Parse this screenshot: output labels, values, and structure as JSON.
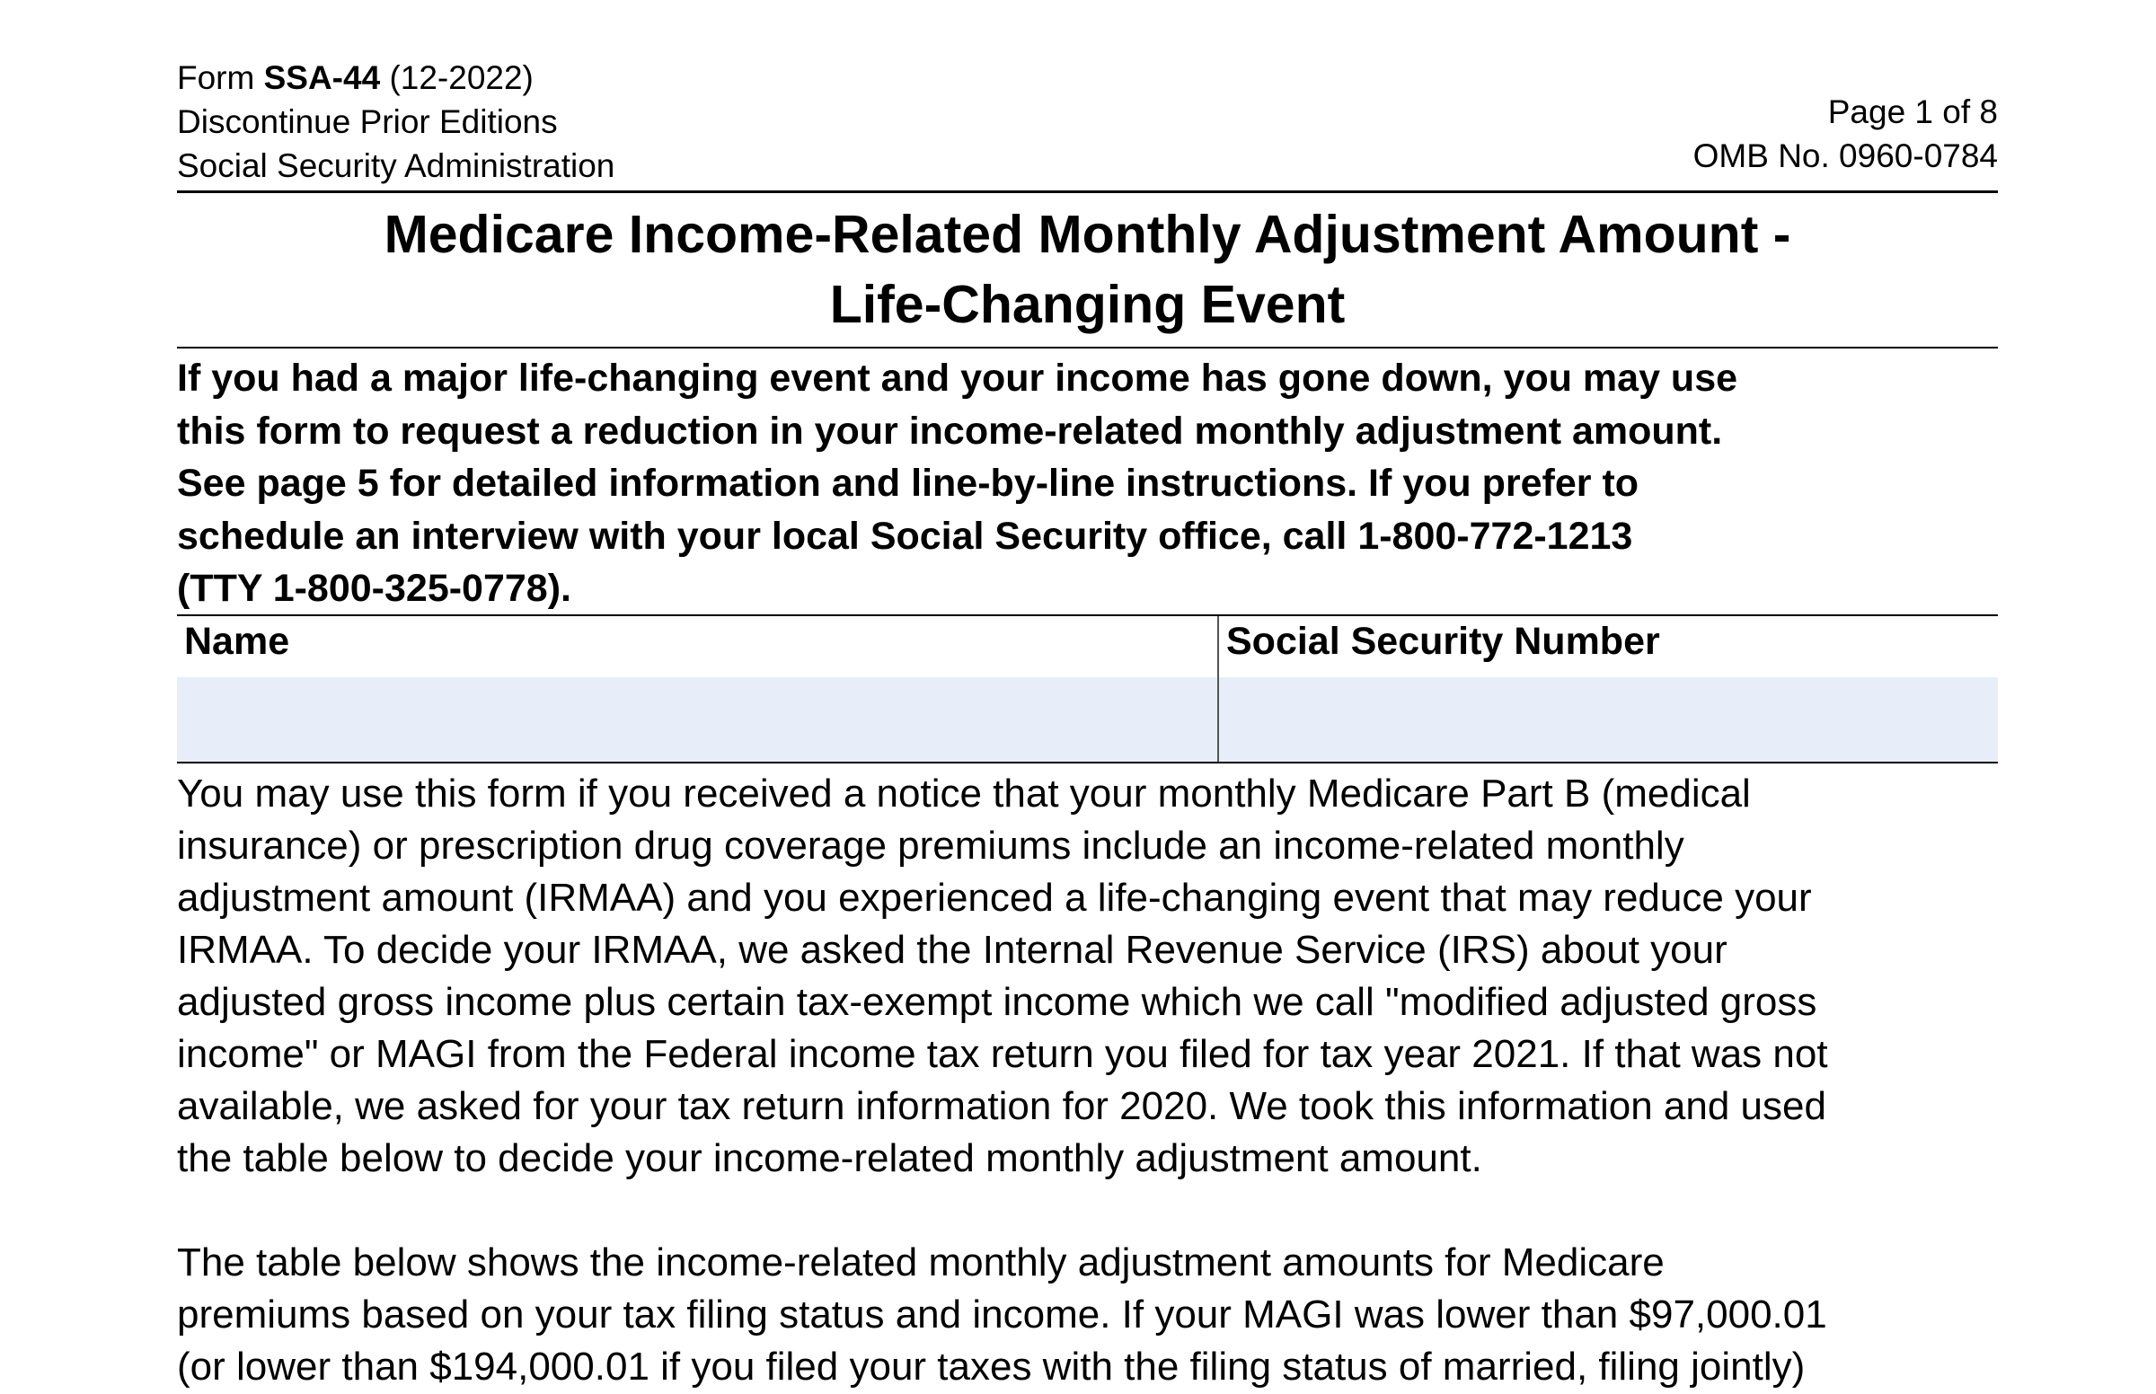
{
  "header": {
    "form_prefix": "Form ",
    "form_number": "SSA-44",
    "form_edition": " (12-2022)",
    "discontinue": "Discontinue Prior Editions",
    "agency": "Social Security Administration",
    "page": "Page 1 of 8",
    "omb": "OMB No. 0960-0784"
  },
  "title": {
    "line1": "Medicare Income-Related Monthly Adjustment Amount -",
    "line2": "Life-Changing Event"
  },
  "intro_lines": [
    "If you had a major life-changing event and your income has gone down, you may use",
    "this form to request a reduction in your income-related monthly adjustment amount.",
    "See page 5 for detailed information and line-by-line instructions. If you prefer to",
    "schedule an interview with your local Social Security office, call 1-800-772-1213",
    "(TTY 1-800-325-0778)."
  ],
  "fields": {
    "name_label": "Name",
    "name_value": "",
    "ssn_label": "Social Security Number",
    "ssn_value": ""
  },
  "paragraph1_lines": [
    "You may use this form if you received a notice that your monthly Medicare Part B (medical",
    "insurance) or prescription drug coverage premiums include an income-related monthly",
    "adjustment amount (IRMAA) and you experienced a life-changing event that may reduce your",
    "IRMAA. To decide your IRMAA, we asked the Internal Revenue Service (IRS) about your",
    "adjusted gross income plus certain tax-exempt income which we call \"modified adjusted gross",
    "income\" or MAGI from the Federal income tax return you filed for tax year 2021. If that was not",
    "available, we asked for your tax return information for 2020. We took this information and used",
    "the table below to decide your income-related monthly adjustment amount."
  ],
  "paragraph2_lines": [
    "The table below shows the income-related monthly adjustment amounts for Medicare",
    "premiums based on your tax filing status and income. If your MAGI was lower than $97,000.01",
    "(or lower than $194,000.01 if you filed your taxes with the filing status of married, filing jointly)"
  ],
  "colors": {
    "field_fill": "#e8eef9"
  }
}
